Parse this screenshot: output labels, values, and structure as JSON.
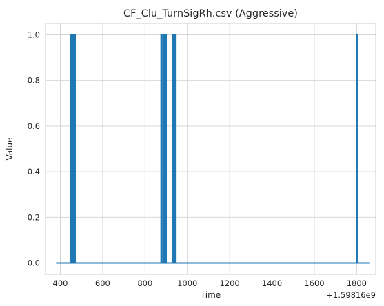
{
  "chart_data": {
    "type": "line",
    "title": "CF_Clu_TurnSigRh.csv (Aggressive)",
    "xlabel": "Time",
    "ylabel": "Value",
    "x_offset_label": "+1.59816e9",
    "xlim": [
      330,
      1890
    ],
    "ylim": [
      -0.05,
      1.05
    ],
    "xticks": [
      400,
      600,
      800,
      1000,
      1200,
      1400,
      1600,
      1800
    ],
    "xtick_labels": [
      "400",
      "600",
      "800",
      "1000",
      "1200",
      "1400",
      "1600",
      "1800"
    ],
    "yticks": [
      0.0,
      0.2,
      0.4,
      0.6,
      0.8,
      1.0
    ],
    "ytick_labels": [
      "0.0",
      "0.2",
      "0.4",
      "0.6",
      "0.8",
      "1.0"
    ],
    "grid": true,
    "color": "#1f77b4",
    "series": [
      {
        "x": [
          380,
          450,
          450,
          454,
          454,
          458,
          458,
          462,
          462,
          466,
          466,
          470,
          470,
          876,
          876,
          880,
          880,
          888,
          888,
          892,
          892,
          896,
          896,
          900,
          900,
          930,
          930,
          936,
          936,
          940,
          940,
          946,
          946,
          1800,
          1800,
          1802,
          1802,
          1860
        ],
        "y": [
          0,
          0,
          1,
          1,
          0,
          0,
          1,
          1,
          0,
          0,
          1,
          1,
          0,
          0,
          1,
          1,
          0,
          0,
          1,
          1,
          0,
          0,
          1,
          1,
          0,
          0,
          1,
          1,
          0,
          0,
          1,
          1,
          0,
          0,
          1,
          1,
          0,
          0
        ]
      }
    ]
  }
}
